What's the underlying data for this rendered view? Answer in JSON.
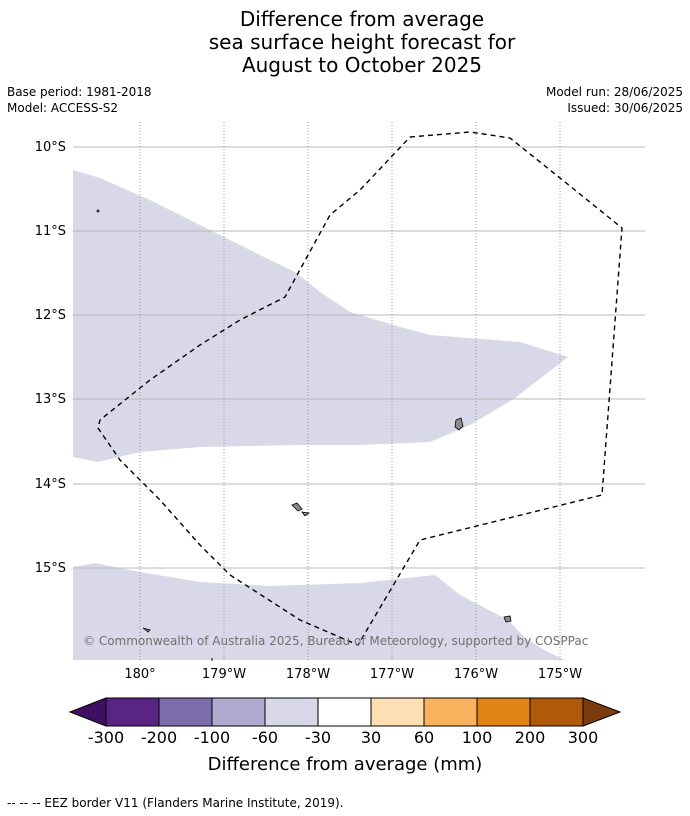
{
  "title": {
    "line1": "Difference from average",
    "line2": "sea surface height forecast for",
    "line3": "August to October 2025"
  },
  "meta": {
    "base_period": "Base period: 1981-2018",
    "model": "Model: ACCESS-S2",
    "model_run": "Model run: 28/06/2025",
    "issued": "Issued: 30/06/2025"
  },
  "map": {
    "lat_labels": [
      "10°S",
      "11°S",
      "12°S",
      "13°S",
      "14°S",
      "15°S"
    ],
    "lon_labels": [
      "180°",
      "179°W",
      "178°W",
      "177°W",
      "176°W",
      "175°W"
    ],
    "copyright": "© Commonwealth of Australia 2025, Bureau of Meteorology, supported by COSPPac",
    "anomaly_fill_color": "#d8d8e9",
    "eez_line_color": "#000000"
  },
  "colorbar": {
    "title": "Difference from average (mm)",
    "labels": [
      "-300",
      "-200",
      "-100",
      "-60",
      "-30",
      "30",
      "60",
      "100",
      "200",
      "300"
    ],
    "colors": [
      "#3f1061",
      "#5a2485",
      "#7d6eab",
      "#b0a9d0",
      "#d8d8e9",
      "#ffffff",
      "#fddfb3",
      "#f9b35f",
      "#e08416",
      "#b05908",
      "#7a3c0c"
    ]
  },
  "footer": {
    "text": "--  --  -- EEZ border V11 (Flanders Marine Institute, 2019)."
  }
}
